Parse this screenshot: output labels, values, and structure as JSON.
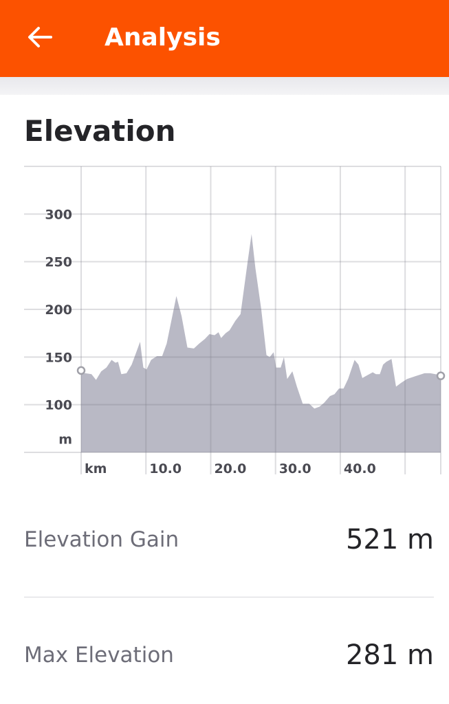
{
  "header": {
    "title": "Analysis",
    "back_icon": "arrow-left-icon"
  },
  "section": {
    "title": "Elevation"
  },
  "chart_data": {
    "type": "area",
    "xlabel": "km",
    "ylabel": "m",
    "x_ticks": [
      "10.0",
      "20.0",
      "30.0",
      "40.0"
    ],
    "y_ticks": [
      "300",
      "250",
      "200",
      "150",
      "100"
    ],
    "xlim": [
      0,
      55.5
    ],
    "ylim": [
      50,
      350
    ],
    "grid": true,
    "fill_color": "#b9b9c5",
    "x": [
      0,
      0.7,
      1.6,
      2.3,
      3.1,
      3.9,
      4.7,
      5.3,
      5.7,
      6.2,
      7,
      7.8,
      8.4,
      9.1,
      9.6,
      10.1,
      10.8,
      11.7,
      12.5,
      13.2,
      14.7,
      15.5,
      16.4,
      17.4,
      18.2,
      19.1,
      19.8,
      20.6,
      21.2,
      21.6,
      22.3,
      22.9,
      23.8,
      24.6,
      25.7,
      26.3,
      26.9,
      27.8,
      28.6,
      29.1,
      29.7,
      30.1,
      30.8,
      31.3,
      31.8,
      32.6,
      33.3,
      34.2,
      35.2,
      36,
      36.8,
      37.5,
      38.4,
      39.1,
      39.8,
      40.5,
      41.2,
      42.2,
      42.8,
      43.4,
      44.2,
      45,
      45.5,
      46.1,
      46.6,
      47.1,
      47.9,
      48.6,
      49.4,
      50.3,
      51.6,
      53,
      53.9,
      55.5
    ],
    "y": [
      133,
      133,
      132,
      126,
      135,
      139,
      147,
      144,
      145,
      132,
      133,
      142,
      153,
      166,
      139,
      137,
      147,
      151,
      151,
      164,
      214,
      193,
      160,
      159,
      164,
      169,
      174,
      173,
      176,
      170,
      175,
      178,
      188,
      195,
      250,
      279,
      243,
      200,
      152,
      150,
      155,
      139,
      139,
      150,
      127,
      135,
      119,
      101,
      101,
      96,
      98,
      102,
      109,
      111,
      117,
      117,
      127,
      147,
      142,
      128,
      131,
      134,
      132,
      132,
      142,
      145,
      148,
      119,
      123,
      127,
      130,
      133,
      133,
      131
    ]
  },
  "stats": [
    {
      "label": "Elevation Gain",
      "value": "521 m"
    },
    {
      "label": "Max Elevation",
      "value": "281 m"
    }
  ]
}
